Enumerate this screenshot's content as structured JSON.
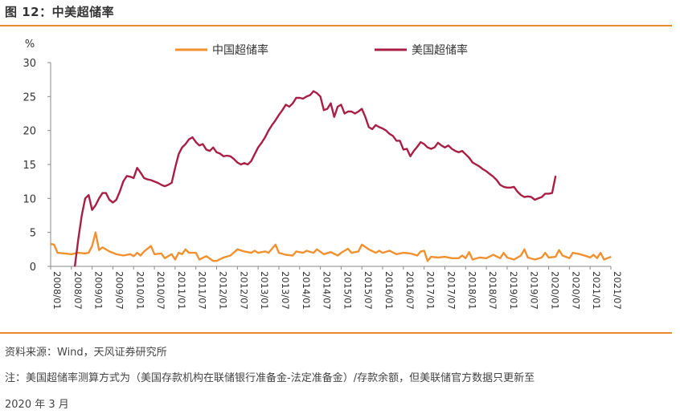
{
  "figure": {
    "title": "图 12：中美超储率"
  },
  "footer": {
    "source": "资料来源：Wind，天风证券研究所",
    "note_line1": "注：美国超储率测算方式为（美国存款机构在联储银行准备金-法定准备金）/存款余额，但美联储官方数据只更新至",
    "note_line2": "2020 年 3 月"
  },
  "chart_data": {
    "type": "line",
    "ylabel": "%",
    "ylim": [
      0,
      30
    ],
    "yticks": [
      0,
      5,
      10,
      15,
      20,
      25,
      30
    ],
    "xlim": [
      "2008-01",
      "2021-07"
    ],
    "xticks": [
      "2008/01",
      "2008/07",
      "2009/01",
      "2009/07",
      "2010/01",
      "2010/07",
      "2011/01",
      "2011/07",
      "2012/01",
      "2012/07",
      "2013/01",
      "2013/07",
      "2014/01",
      "2014/07",
      "2015/01",
      "2015/07",
      "2016/01",
      "2016/07",
      "2017/01",
      "2017/07",
      "2018/01",
      "2018/07",
      "2019/01",
      "2019/07",
      "2020/01",
      "2020/07",
      "2021/01",
      "2021/07"
    ],
    "grid": false,
    "legend_position": "top-center",
    "series": [
      {
        "name": "中国超储率",
        "color": "#f0902f",
        "points": [
          [
            "2008-01",
            3.3
          ],
          [
            "2008-02",
            3.2
          ],
          [
            "2008-03",
            2.0
          ],
          [
            "2008-05",
            1.9
          ],
          [
            "2008-07",
            1.8
          ],
          [
            "2008-09",
            2.0
          ],
          [
            "2008-11",
            1.9
          ],
          [
            "2008-12",
            2.0
          ],
          [
            "2009-01",
            3.0
          ],
          [
            "2009-02",
            5.0
          ],
          [
            "2009-03",
            2.4
          ],
          [
            "2009-04",
            2.8
          ],
          [
            "2009-06",
            2.2
          ],
          [
            "2009-08",
            1.8
          ],
          [
            "2009-10",
            1.6
          ],
          [
            "2009-12",
            1.8
          ],
          [
            "2010-01",
            1.5
          ],
          [
            "2010-02",
            2.0
          ],
          [
            "2010-03",
            1.6
          ],
          [
            "2010-04",
            2.2
          ],
          [
            "2010-06",
            3.0
          ],
          [
            "2010-07",
            1.8
          ],
          [
            "2010-09",
            1.9
          ],
          [
            "2010-10",
            1.2
          ],
          [
            "2010-12",
            1.8
          ],
          [
            "2011-01",
            1.0
          ],
          [
            "2011-02",
            2.0
          ],
          [
            "2011-03",
            1.8
          ],
          [
            "2011-04",
            2.5
          ],
          [
            "2011-05",
            2.0
          ],
          [
            "2011-07",
            2.0
          ],
          [
            "2011-08",
            1.0
          ],
          [
            "2011-10",
            1.5
          ],
          [
            "2011-12",
            0.8
          ],
          [
            "2012-01",
            0.8
          ],
          [
            "2012-03",
            1.3
          ],
          [
            "2012-05",
            1.6
          ],
          [
            "2012-07",
            2.5
          ],
          [
            "2012-09",
            2.2
          ],
          [
            "2012-11",
            2.0
          ],
          [
            "2012-12",
            2.3
          ],
          [
            "2013-01",
            2.0
          ],
          [
            "2013-03",
            2.2
          ],
          [
            "2013-04",
            2.0
          ],
          [
            "2013-06",
            3.2
          ],
          [
            "2013-07",
            2.0
          ],
          [
            "2013-09",
            1.7
          ],
          [
            "2013-11",
            1.6
          ],
          [
            "2013-12",
            2.2
          ],
          [
            "2014-02",
            2.0
          ],
          [
            "2014-03",
            2.3
          ],
          [
            "2014-05",
            2.0
          ],
          [
            "2014-06",
            2.5
          ],
          [
            "2014-08",
            1.8
          ],
          [
            "2014-10",
            2.1
          ],
          [
            "2014-12",
            1.6
          ],
          [
            "2015-01",
            2.0
          ],
          [
            "2015-03",
            2.6
          ],
          [
            "2015-04",
            2.0
          ],
          [
            "2015-06",
            2.2
          ],
          [
            "2015-07",
            3.2
          ],
          [
            "2015-09",
            2.5
          ],
          [
            "2015-11",
            2.0
          ],
          [
            "2015-12",
            2.3
          ],
          [
            "2016-01",
            2.0
          ],
          [
            "2016-03",
            2.3
          ],
          [
            "2016-05",
            1.8
          ],
          [
            "2016-07",
            2.0
          ],
          [
            "2016-09",
            1.9
          ],
          [
            "2016-11",
            1.6
          ],
          [
            "2016-12",
            2.2
          ],
          [
            "2017-01",
            2.3
          ],
          [
            "2017-02",
            0.8
          ],
          [
            "2017-03",
            1.4
          ],
          [
            "2017-05",
            1.3
          ],
          [
            "2017-07",
            1.4
          ],
          [
            "2017-09",
            1.2
          ],
          [
            "2017-11",
            1.2
          ],
          [
            "2017-12",
            1.6
          ],
          [
            "2018-01",
            1.2
          ],
          [
            "2018-02",
            2.1
          ],
          [
            "2018-03",
            1.0
          ],
          [
            "2018-05",
            1.3
          ],
          [
            "2018-07",
            1.2
          ],
          [
            "2018-09",
            1.7
          ],
          [
            "2018-11",
            1.2
          ],
          [
            "2018-12",
            2.0
          ],
          [
            "2019-01",
            1.3
          ],
          [
            "2019-03",
            1.0
          ],
          [
            "2019-05",
            1.6
          ],
          [
            "2019-06",
            2.5
          ],
          [
            "2019-07",
            1.3
          ],
          [
            "2019-09",
            1.0
          ],
          [
            "2019-11",
            1.3
          ],
          [
            "2019-12",
            2.0
          ],
          [
            "2020-01",
            1.3
          ],
          [
            "2020-03",
            1.4
          ],
          [
            "2020-04",
            2.4
          ],
          [
            "2020-05",
            1.6
          ],
          [
            "2020-07",
            1.2
          ],
          [
            "2020-08",
            2.0
          ],
          [
            "2020-10",
            1.8
          ],
          [
            "2020-12",
            1.5
          ],
          [
            "2021-01",
            1.3
          ],
          [
            "2021-02",
            1.7
          ],
          [
            "2021-03",
            1.2
          ],
          [
            "2021-04",
            2.0
          ],
          [
            "2021-05",
            1.0
          ],
          [
            "2021-06",
            1.2
          ],
          [
            "2021-07",
            1.4
          ]
        ]
      },
      {
        "name": "美国超储率",
        "color": "#a91e45",
        "points": [
          [
            "2008-08",
            0.0
          ],
          [
            "2008-09",
            4.0
          ],
          [
            "2008-10",
            7.5
          ],
          [
            "2008-11",
            10.0
          ],
          [
            "2008-12",
            10.5
          ],
          [
            "2009-01",
            8.3
          ],
          [
            "2009-02",
            9.0
          ],
          [
            "2009-03",
            10.0
          ],
          [
            "2009-04",
            10.8
          ],
          [
            "2009-05",
            10.8
          ],
          [
            "2009-06",
            9.8
          ],
          [
            "2009-07",
            9.4
          ],
          [
            "2009-08",
            9.8
          ],
          [
            "2009-09",
            11.0
          ],
          [
            "2009-10",
            12.5
          ],
          [
            "2009-11",
            13.3
          ],
          [
            "2009-12",
            13.2
          ],
          [
            "2010-01",
            13.0
          ],
          [
            "2010-02",
            14.5
          ],
          [
            "2010-03",
            13.8
          ],
          [
            "2010-04",
            13.0
          ],
          [
            "2010-05",
            12.8
          ],
          [
            "2010-06",
            12.7
          ],
          [
            "2010-07",
            12.5
          ],
          [
            "2010-08",
            12.3
          ],
          [
            "2010-09",
            12.0
          ],
          [
            "2010-10",
            11.8
          ],
          [
            "2010-11",
            12.0
          ],
          [
            "2010-12",
            12.3
          ],
          [
            "2011-01",
            14.5
          ],
          [
            "2011-02",
            16.5
          ],
          [
            "2011-03",
            17.5
          ],
          [
            "2011-04",
            18.0
          ],
          [
            "2011-05",
            18.7
          ],
          [
            "2011-06",
            19.0
          ],
          [
            "2011-07",
            18.3
          ],
          [
            "2011-08",
            17.8
          ],
          [
            "2011-09",
            18.0
          ],
          [
            "2011-10",
            17.2
          ],
          [
            "2011-11",
            17.0
          ],
          [
            "2011-12",
            17.5
          ],
          [
            "2012-01",
            16.8
          ],
          [
            "2012-02",
            16.6
          ],
          [
            "2012-03",
            16.2
          ],
          [
            "2012-04",
            16.3
          ],
          [
            "2012-05",
            16.2
          ],
          [
            "2012-06",
            15.8
          ],
          [
            "2012-07",
            15.3
          ],
          [
            "2012-08",
            15.0
          ],
          [
            "2012-09",
            15.2
          ],
          [
            "2012-10",
            15.0
          ],
          [
            "2012-11",
            15.5
          ],
          [
            "2012-12",
            16.5
          ],
          [
            "2013-01",
            17.5
          ],
          [
            "2013-02",
            18.2
          ],
          [
            "2013-03",
            19.0
          ],
          [
            "2013-04",
            20.0
          ],
          [
            "2013-05",
            20.8
          ],
          [
            "2013-06",
            21.5
          ],
          [
            "2013-07",
            22.3
          ],
          [
            "2013-08",
            23.0
          ],
          [
            "2013-09",
            23.8
          ],
          [
            "2013-10",
            23.5
          ],
          [
            "2013-11",
            24.0
          ],
          [
            "2013-12",
            24.8
          ],
          [
            "2014-01",
            24.8
          ],
          [
            "2014-02",
            24.7
          ],
          [
            "2014-03",
            25.0
          ],
          [
            "2014-04",
            25.2
          ],
          [
            "2014-05",
            25.8
          ],
          [
            "2014-06",
            25.5
          ],
          [
            "2014-07",
            25.0
          ],
          [
            "2014-08",
            23.0
          ],
          [
            "2014-09",
            23.2
          ],
          [
            "2014-10",
            24.0
          ],
          [
            "2014-11",
            22.0
          ],
          [
            "2014-12",
            23.5
          ],
          [
            "2015-01",
            23.8
          ],
          [
            "2015-02",
            22.5
          ],
          [
            "2015-03",
            22.8
          ],
          [
            "2015-04",
            22.8
          ],
          [
            "2015-05",
            22.5
          ],
          [
            "2015-06",
            22.8
          ],
          [
            "2015-07",
            23.2
          ],
          [
            "2015-08",
            22.0
          ],
          [
            "2015-09",
            20.5
          ],
          [
            "2015-10",
            20.2
          ],
          [
            "2015-11",
            20.8
          ],
          [
            "2015-12",
            20.5
          ],
          [
            "2016-01",
            20.3
          ],
          [
            "2016-02",
            20.0
          ],
          [
            "2016-03",
            19.5
          ],
          [
            "2016-04",
            19.2
          ],
          [
            "2016-05",
            18.5
          ],
          [
            "2016-06",
            18.5
          ],
          [
            "2016-07",
            17.2
          ],
          [
            "2016-08",
            17.3
          ],
          [
            "2016-09",
            16.2
          ],
          [
            "2016-10",
            17.0
          ],
          [
            "2016-11",
            17.6
          ],
          [
            "2016-12",
            18.3
          ],
          [
            "2017-01",
            18.0
          ],
          [
            "2017-02",
            17.5
          ],
          [
            "2017-03",
            17.3
          ],
          [
            "2017-04",
            17.5
          ],
          [
            "2017-05",
            18.2
          ],
          [
            "2017-06",
            17.8
          ],
          [
            "2017-07",
            17.5
          ],
          [
            "2017-08",
            17.8
          ],
          [
            "2017-09",
            17.3
          ],
          [
            "2017-10",
            17.0
          ],
          [
            "2017-11",
            16.8
          ],
          [
            "2017-12",
            17.0
          ],
          [
            "2018-01",
            16.5
          ],
          [
            "2018-02",
            16.0
          ],
          [
            "2018-03",
            15.3
          ],
          [
            "2018-04",
            15.0
          ],
          [
            "2018-05",
            14.7
          ],
          [
            "2018-06",
            14.3
          ],
          [
            "2018-07",
            14.0
          ],
          [
            "2018-08",
            13.6
          ],
          [
            "2018-09",
            13.2
          ],
          [
            "2018-10",
            12.7
          ],
          [
            "2018-11",
            12.0
          ],
          [
            "2018-12",
            11.7
          ],
          [
            "2019-01",
            11.6
          ],
          [
            "2019-02",
            11.6
          ],
          [
            "2019-03",
            11.7
          ],
          [
            "2019-04",
            11.0
          ],
          [
            "2019-05",
            10.5
          ],
          [
            "2019-06",
            10.2
          ],
          [
            "2019-07",
            10.3
          ],
          [
            "2019-08",
            10.2
          ],
          [
            "2019-09",
            9.8
          ],
          [
            "2019-10",
            10.0
          ],
          [
            "2019-11",
            10.2
          ],
          [
            "2019-12",
            10.7
          ],
          [
            "2020-01",
            10.7
          ],
          [
            "2020-02",
            10.8
          ],
          [
            "2020-03",
            13.3
          ]
        ]
      }
    ]
  }
}
